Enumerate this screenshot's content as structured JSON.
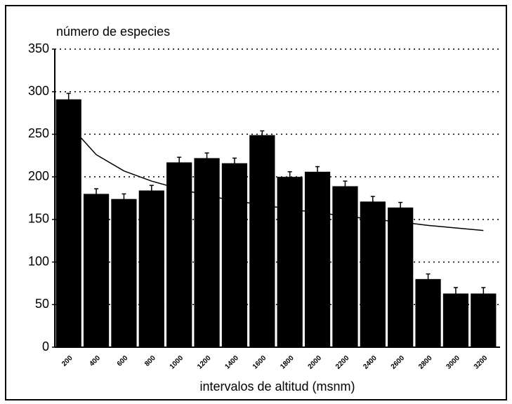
{
  "chart_data": {
    "type": "bar",
    "title": "número de especies",
    "x_label": "intervalos de altitud (msnm)",
    "categories": [
      "200",
      "400",
      "600",
      "800",
      "1000",
      "1200",
      "1400",
      "1600",
      "1800",
      "2000",
      "2200",
      "2400",
      "2600",
      "2800",
      "3000",
      "3200"
    ],
    "values": [
      291,
      180,
      174,
      184,
      217,
      222,
      216,
      249,
      200,
      206,
      189,
      171,
      164,
      80,
      63,
      63
    ],
    "errors": [
      7,
      6,
      6,
      6,
      6,
      6,
      6,
      5,
      6,
      6,
      6,
      6,
      6,
      6,
      7,
      7
    ],
    "trend": [
      262,
      226,
      207,
      195,
      186,
      178,
      172,
      167,
      162,
      158,
      154,
      150,
      147,
      143,
      140,
      137
    ],
    "color": "#000000",
    "ylim": [
      0,
      350
    ],
    "yticks": [
      0,
      50,
      100,
      150,
      200,
      250,
      300,
      350
    ],
    "grid": true
  }
}
